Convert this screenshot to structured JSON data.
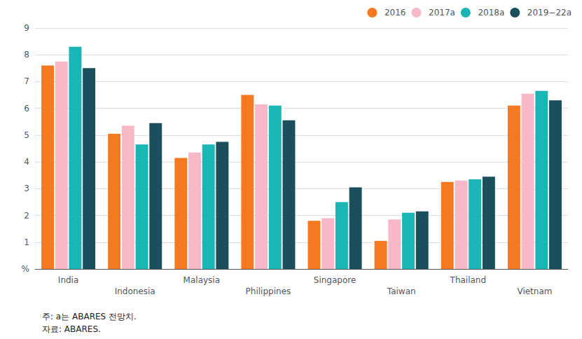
{
  "chart_data": {
    "type": "bar",
    "categories": [
      "India",
      "Indonesia",
      "Malaysia",
      "Philippines",
      "Singapore",
      "Taiwan",
      "Thailand",
      "Vietnam"
    ],
    "series": [
      {
        "name": "2016",
        "color": "#F47920",
        "values": [
          7.6,
          5.05,
          4.15,
          6.5,
          1.8,
          1.05,
          3.25,
          6.1
        ]
      },
      {
        "name": "2017a",
        "color": "#F9B8C8",
        "values": [
          7.75,
          5.35,
          4.35,
          6.15,
          1.9,
          1.85,
          3.3,
          6.55
        ]
      },
      {
        "name": "2018a",
        "color": "#1AB5B5",
        "values": [
          8.3,
          4.65,
          4.65,
          6.1,
          2.5,
          2.1,
          3.35,
          6.65
        ]
      },
      {
        "name": "2019−22a",
        "color": "#1B4F5E",
        "values": [
          7.5,
          5.45,
          4.75,
          5.55,
          3.05,
          2.15,
          3.45,
          6.3
        ]
      }
    ],
    "ylim": [
      0,
      9
    ],
    "yticks": [
      {
        "value": 0,
        "label": "%"
      },
      1,
      2,
      3,
      4,
      5,
      6,
      7,
      8,
      9
    ],
    "grid": true,
    "legend": "upper right",
    "annotations": [
      "주: a는 ABARES 전망치.",
      "자료: ABARES."
    ]
  }
}
